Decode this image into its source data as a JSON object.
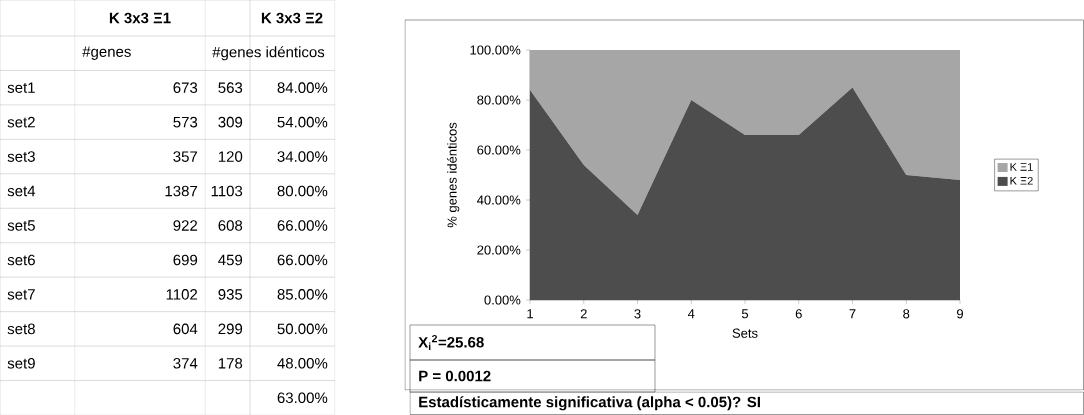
{
  "chart_data": [
    {
      "type": "other",
      "data_labels": true,
      "categories": [
        "set1",
        "set2",
        "set3",
        "set4",
        "set5",
        "set6",
        "set7",
        "set8",
        "set9"
      ],
      "series": [
        {
          "name": "#genes",
          "values": [
            673,
            573,
            357,
            1387,
            922,
            699,
            1102,
            604,
            374
          ]
        },
        {
          "name": "#genes idénticos",
          "values": [
            563,
            309,
            120,
            1103,
            608,
            459,
            935,
            299,
            178
          ]
        },
        {
          "values": [
            84,
            54,
            34,
            80,
            66,
            66,
            85,
            50,
            48
          ],
          "value_labels": [
            "84.00%",
            "54.00%",
            "34.00%",
            "80.00%",
            "66.00%",
            "66.00%",
            "85.00%",
            "50.00%",
            "48.00%"
          ]
        }
      ],
      "annotations": [
        "K 3x3 Ξ1",
        "K 3x3 Ξ2",
        "63.00%"
      ]
    },
    {
      "type": "area",
      "stacked": true,
      "xlabel": "Sets",
      "ylabel": "% genes idénticos",
      "x": [
        1,
        2,
        3,
        4,
        5,
        6,
        7,
        8,
        9
      ],
      "series": [
        {
          "name": "K Ξ2",
          "color": "#4d4d4d",
          "values": [
            84,
            54,
            34,
            80,
            66,
            66,
            85,
            50,
            48
          ]
        },
        {
          "name": "K Ξ1",
          "color": "#a6a6a6",
          "values": [
            16,
            46,
            66,
            20,
            34,
            34,
            15,
            50,
            52
          ]
        }
      ],
      "xlim": [
        1,
        9
      ],
      "ylim": [
        0,
        100
      ],
      "xticks": [
        1,
        2,
        3,
        4,
        5,
        6,
        7,
        8,
        9
      ],
      "yticks": [
        {
          "value": 0,
          "label": "0.00%"
        },
        {
          "value": 20,
          "label": "20.00%"
        },
        {
          "value": 40,
          "label": "40.00%"
        },
        {
          "value": 60,
          "label": "60.00%"
        },
        {
          "value": 80,
          "label": "80.00%"
        },
        {
          "value": 100,
          "label": "100.00%"
        }
      ],
      "legend": "right",
      "annotations": [
        "X$_{i}$$^{2}$=25.68",
        "P = 0.0012",
        "Estadísticamente significativa (alpha < 0.05)? SI"
      ]
    }
  ]
}
